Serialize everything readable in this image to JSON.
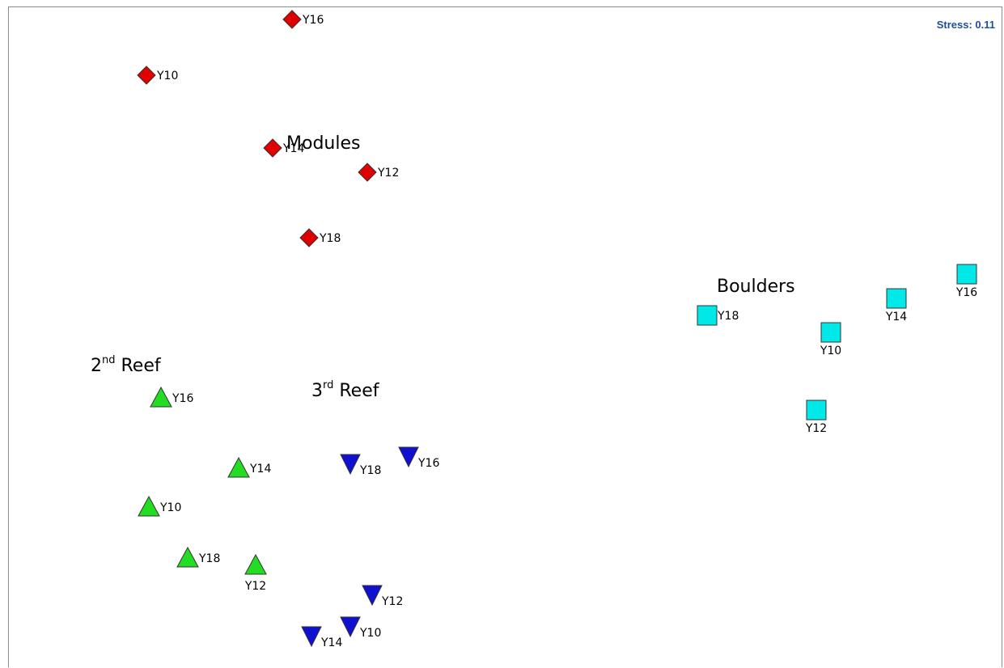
{
  "stress_label": "Stress: 0.11",
  "colors": {
    "Modules": "#e00000",
    "Boulders": "#00e8e8",
    "2nd Reef": "#22dd22",
    "3rd Reef": "#1010d0",
    "stress_text": "#1f4e9c"
  },
  "chart_data": {
    "type": "scatter",
    "title": "",
    "xlabel": "",
    "ylabel": "",
    "grid": false,
    "group_labels": [
      {
        "group": "Modules",
        "base": "Modules",
        "sup": "",
        "rest": ""
      },
      {
        "group": "Boulders",
        "base": "Boulders",
        "sup": "",
        "rest": ""
      },
      {
        "group": "2nd Reef",
        "base": "2",
        "sup": "nd",
        "rest": " Reef"
      },
      {
        "group": "3rd Reef",
        "base": "3",
        "sup": "rd",
        "rest": " Reef"
      }
    ],
    "series": [
      {
        "name": "Modules",
        "marker": "diamond",
        "points": [
          {
            "label": "Y16",
            "x": -0.95,
            "y": 1.45
          },
          {
            "label": "Y10",
            "x": -1.55,
            "y": 1.22
          },
          {
            "label": "Y14",
            "x": -1.03,
            "y": 0.92
          },
          {
            "label": "Y12",
            "x": -0.64,
            "y": 0.82
          },
          {
            "label": "Y18",
            "x": -0.88,
            "y": 0.55
          }
        ]
      },
      {
        "name": "Boulders",
        "marker": "square",
        "points": [
          {
            "label": "Y18",
            "x": 0.76,
            "y": 0.23
          },
          {
            "label": "Y10",
            "x": 1.27,
            "y": 0.16
          },
          {
            "label": "Y14",
            "x": 1.54,
            "y": 0.3
          },
          {
            "label": "Y16",
            "x": 1.83,
            "y": 0.4
          },
          {
            "label": "Y12",
            "x": 1.21,
            "y": -0.16
          }
        ]
      },
      {
        "name": "2nd Reef",
        "marker": "triangle-up",
        "points": [
          {
            "label": "Y16",
            "x": -1.49,
            "y": -0.11
          },
          {
            "label": "Y14",
            "x": -1.17,
            "y": -0.4
          },
          {
            "label": "Y10",
            "x": -1.54,
            "y": -0.56
          },
          {
            "label": "Y18",
            "x": -1.38,
            "y": -0.77
          },
          {
            "label": "Y12",
            "x": -1.1,
            "y": -0.8
          }
        ]
      },
      {
        "name": "3rd Reef",
        "marker": "triangle-down",
        "points": [
          {
            "label": "Y18",
            "x": -0.71,
            "y": -0.38
          },
          {
            "label": "Y16",
            "x": -0.47,
            "y": -0.35
          },
          {
            "label": "Y12",
            "x": -0.62,
            "y": -0.92
          },
          {
            "label": "Y10",
            "x": -0.71,
            "y": -1.05
          },
          {
            "label": "Y14",
            "x": -0.87,
            "y": -1.09
          }
        ]
      }
    ]
  }
}
